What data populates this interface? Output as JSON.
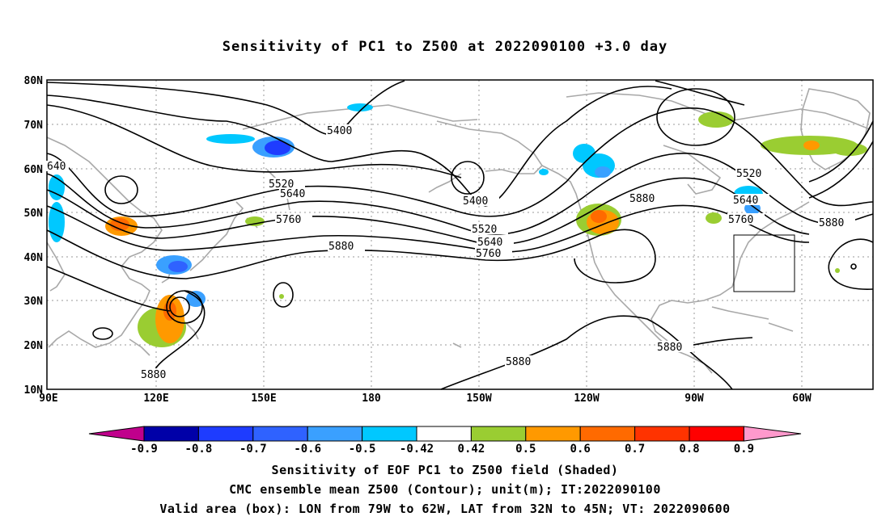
{
  "title": "Sensitivity of PC1 to Z500 at 2022090100 +3.0 day",
  "lat_labels": [
    "80N",
    "70N",
    "60N",
    "50N",
    "40N",
    "30N",
    "20N",
    "10N"
  ],
  "lon_labels": [
    "90E",
    "120E",
    "150E",
    "180",
    "150W",
    "120W",
    "90W",
    "60W"
  ],
  "contour_labels": [
    "640",
    "5400",
    "5520",
    "5640",
    "5760",
    "5880",
    "5400",
    "5520",
    "5640",
    "5760",
    "5880",
    "5520",
    "5640",
    "5760",
    "5880",
    "5880",
    "5880",
    "5880"
  ],
  "colorbar": {
    "labels": [
      "-0.9",
      "-0.8",
      "-0.7",
      "-0.6",
      "-0.5",
      "-0.42",
      "0.42",
      "0.5",
      "0.6",
      "0.7",
      "0.8",
      "0.9"
    ],
    "colors": [
      "#c0008c",
      "#0000a8",
      "#1e3cff",
      "#2f62ff",
      "#3aa0ff",
      "#00c8ff",
      "#ffffff",
      "#9acd32",
      "#ff9900",
      "#ff6a00",
      "#ff3300",
      "#ff0000",
      "#ff99cc"
    ]
  },
  "captions": [
    "Sensitivity of EOF PC1 to Z500 field (Shaded)",
    "CMC ensemble mean Z500 (Contour); unit(m); IT:2022090100",
    "Valid area (box): LON from 79W to 62W, LAT from 32N to 45N; VT: 2022090600"
  ]
}
